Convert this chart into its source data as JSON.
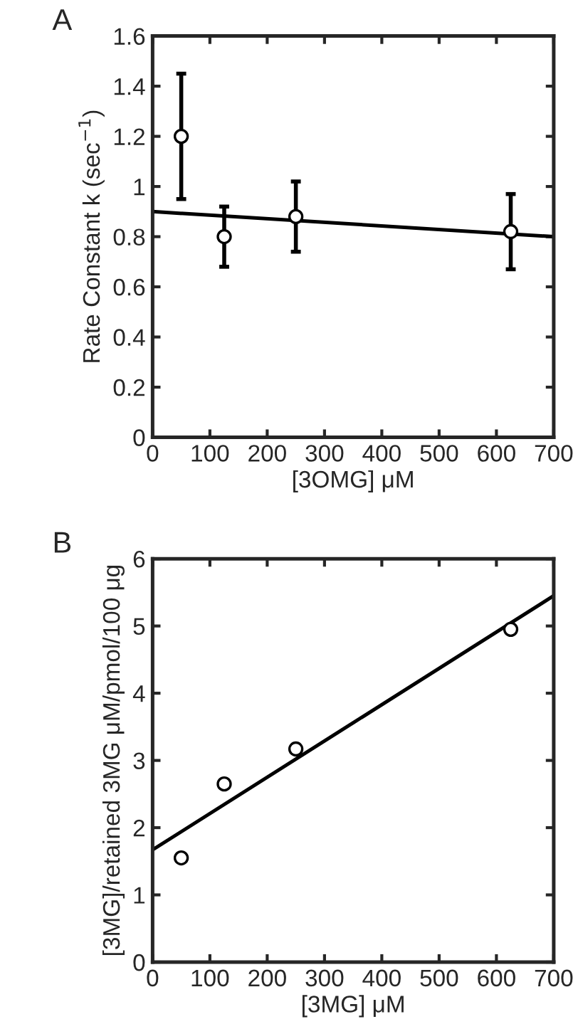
{
  "chart_data": [
    {
      "type": "scatter",
      "xlabel": "[3OMG] μM",
      "ylabel": "Rate Constant k (sec$^{−1}$)",
      "annotations": [
        "A"
      ],
      "xlim": [
        0,
        700
      ],
      "ylim": [
        0,
        1.6
      ],
      "xticks": [
        0,
        100,
        200,
        300,
        400,
        500,
        600,
        700
      ],
      "yticks": [
        0,
        0.2,
        0.4,
        0.6,
        0.8,
        1,
        1.2,
        1.4,
        1.6
      ],
      "grid": false,
      "legend": false,
      "series": [
        {
          "color": "#000000",
          "marker": "circle",
          "x": [
            50,
            125,
            250,
            625
          ],
          "values": [
            1.2,
            0.8,
            0.88,
            0.82
          ],
          "errors": [
            0.25,
            0.12,
            0.14,
            0.15
          ]
        },
        {
          "type": "line",
          "color": "#000000",
          "marker": "none",
          "line_style": "solid",
          "x": [
            0,
            700
          ],
          "values": [
            0.9,
            0.8
          ]
        }
      ]
    },
    {
      "type": "scatter",
      "xlabel": "[3MG] μM",
      "ylabel": "[3MG]/retained 3MG μM/pmol/100 μg",
      "annotations": [
        "B"
      ],
      "xlim": [
        0,
        700
      ],
      "ylim": [
        0,
        6
      ],
      "xticks": [
        0,
        100,
        200,
        300,
        400,
        500,
        600,
        700
      ],
      "yticks": [
        0,
        1,
        2,
        3,
        4,
        5,
        6
      ],
      "grid": false,
      "legend": false,
      "series": [
        {
          "color": "#000000",
          "marker": "circle",
          "x": [
            50,
            125,
            250,
            625
          ],
          "values": [
            1.55,
            2.65,
            3.17,
            4.95
          ]
        },
        {
          "type": "line",
          "color": "#000000",
          "marker": "none",
          "line_style": "solid",
          "x": [
            0,
            700
          ],
          "values": [
            1.67,
            5.45
          ]
        }
      ]
    }
  ]
}
